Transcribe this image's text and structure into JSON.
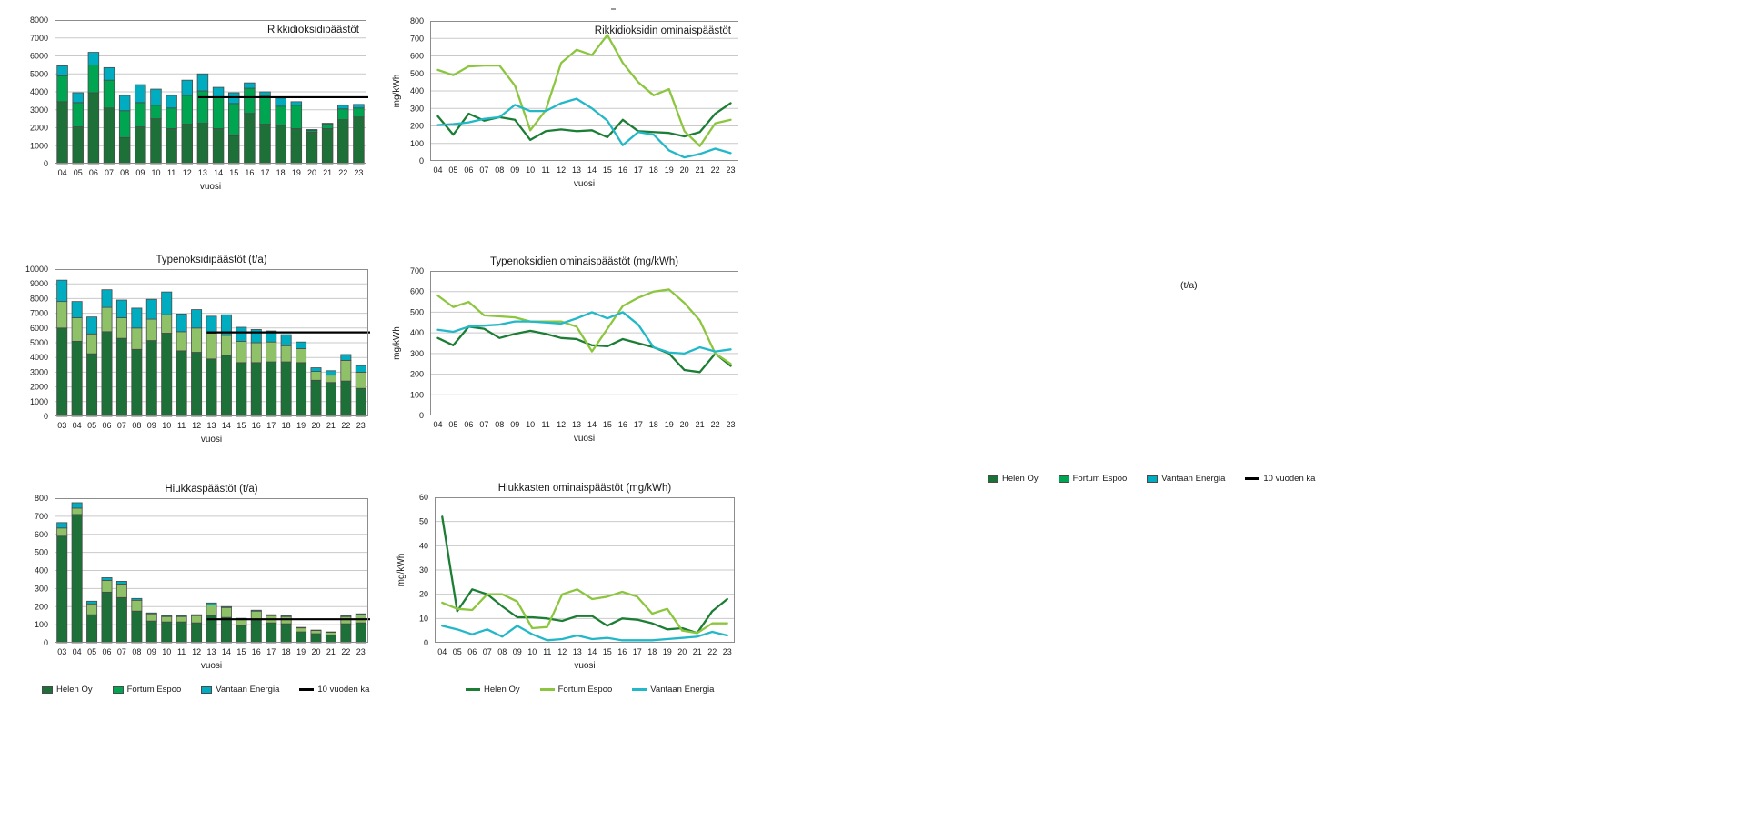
{
  "colors": {
    "helen_bar": "#1D7038",
    "fortum_bar_mid": "#00A551",
    "fortum_bar_light": "#8FC168",
    "vantaan_bar": "#00ADC0",
    "helen_line": "#1B7E34",
    "fortum_line": "#8CC63F",
    "vantaan_line": "#22B8C8",
    "avg_line": "#000000",
    "grid": "#C9C9C9",
    "plot_border": "#8C8C8C",
    "bar_border": "#4A4A4A"
  },
  "annotation_ta": "(t/a)",
  "charts": [
    {
      "id": "so2-emissions",
      "type": "stacked-bar",
      "title": "Rikkidioksidipäästöt",
      "title_align": "right",
      "xlabel": "vuosi",
      "ylabel": "",
      "ymax": 8000,
      "ystep": 1000,
      "categories": [
        "04",
        "05",
        "06",
        "07",
        "08",
        "09",
        "10",
        "11",
        "12",
        "13",
        "14",
        "15",
        "16",
        "17",
        "18",
        "19",
        "20",
        "21",
        "22",
        "23"
      ],
      "series": [
        {
          "name": "Helen Oy",
          "color": "helen_bar",
          "values": [
            3450,
            2050,
            3950,
            3100,
            1450,
            2050,
            2500,
            1950,
            2200,
            2250,
            1950,
            1550,
            2800,
            2200,
            2100,
            1950,
            1750,
            1950,
            2450,
            2600
          ]
        },
        {
          "name": "Fortum Espoo",
          "color": "fortum_bar_mid",
          "values": [
            1450,
            1350,
            1550,
            1550,
            1500,
            1350,
            750,
            1150,
            1600,
            1800,
            1750,
            1800,
            1400,
            1600,
            1100,
            1300,
            100,
            250,
            600,
            500
          ]
        },
        {
          "name": "Vantaan Energia",
          "color": "vantaan_bar",
          "values": [
            550,
            550,
            700,
            700,
            850,
            1000,
            900,
            700,
            850,
            950,
            550,
            600,
            300,
            200,
            450,
            200,
            50,
            50,
            200,
            200
          ]
        }
      ],
      "avg_line": {
        "label": "10 vuoden ka",
        "value": 3700,
        "start_category": "13"
      }
    },
    {
      "id": "so2-specific",
      "type": "line",
      "title": "Rikkidioksidin ominaispäästöt",
      "title_align": "right",
      "xlabel": "vuosi",
      "ylabel": "mg/kWh",
      "ymax": 800,
      "ystep": 100,
      "categories": [
        "04",
        "05",
        "06",
        "07",
        "08",
        "09",
        "10",
        "11",
        "12",
        "13",
        "14",
        "15",
        "16",
        "17",
        "18",
        "19",
        "20",
        "21",
        "22",
        "23"
      ],
      "series": [
        {
          "name": "Helen Oy",
          "color": "helen_line",
          "values": [
            255,
            150,
            270,
            230,
            250,
            235,
            120,
            170,
            180,
            170,
            175,
            135,
            235,
            170,
            165,
            160,
            140,
            165,
            270,
            330
          ]
        },
        {
          "name": "Fortum Espoo",
          "color": "fortum_line",
          "values": [
            520,
            490,
            540,
            545,
            545,
            430,
            175,
            290,
            560,
            635,
            605,
            720,
            560,
            450,
            375,
            410,
            170,
            85,
            215,
            235
          ]
        },
        {
          "name": "Vantaan Energia",
          "color": "vantaan_line",
          "values": [
            205,
            210,
            220,
            240,
            250,
            320,
            285,
            285,
            330,
            355,
            300,
            230,
            90,
            165,
            150,
            60,
            20,
            40,
            70,
            45
          ]
        }
      ]
    },
    {
      "id": "nox-emissions",
      "type": "stacked-bar",
      "title": "Typenoksidipäästöt (t/a)",
      "title_align": "center",
      "xlabel": "vuosi",
      "ylabel": "",
      "ymax": 10000,
      "ystep": 1000,
      "categories": [
        "03",
        "04",
        "05",
        "06",
        "07",
        "08",
        "09",
        "10",
        "11",
        "12",
        "13",
        "14",
        "15",
        "16",
        "17",
        "18",
        "19",
        "20",
        "21",
        "22",
        "23"
      ],
      "series": [
        {
          "name": "Helen Oy",
          "color": "helen_bar",
          "values": [
            6000,
            5100,
            4250,
            5750,
            5300,
            4550,
            5150,
            5650,
            4450,
            4350,
            3900,
            4150,
            3650,
            3650,
            3700,
            3700,
            3650,
            2450,
            2300,
            2400,
            1900
          ]
        },
        {
          "name": "Fortum Espoo",
          "color": "fortum_bar_light",
          "values": [
            1800,
            1600,
            1350,
            1650,
            1400,
            1450,
            1450,
            1250,
            1300,
            1650,
            1750,
            1350,
            1450,
            1350,
            1350,
            1100,
            950,
            600,
            500,
            1400,
            1100
          ]
        },
        {
          "name": "Vantaan Energia",
          "color": "vantaan_bar",
          "values": [
            1450,
            1100,
            1150,
            1200,
            1200,
            1350,
            1350,
            1550,
            1200,
            1250,
            1150,
            1400,
            950,
            900,
            750,
            750,
            450,
            250,
            300,
            400,
            450
          ]
        }
      ],
      "avg_line": {
        "label": "10 vuoden ka",
        "value": 5700,
        "start_category": "13"
      }
    },
    {
      "id": "nox-specific",
      "type": "line",
      "title": "Typenoksidien ominaispäästöt (mg/kWh)",
      "title_align": "center",
      "xlabel": "vuosi",
      "ylabel": "mg/kWh",
      "ymax": 700,
      "ystep": 100,
      "categories": [
        "04",
        "05",
        "06",
        "07",
        "08",
        "09",
        "10",
        "11",
        "12",
        "13",
        "14",
        "15",
        "16",
        "17",
        "18",
        "19",
        "20",
        "21",
        "22",
        "23"
      ],
      "series": [
        {
          "name": "Helen Oy",
          "color": "helen_line",
          "values": [
            375,
            340,
            430,
            420,
            375,
            395,
            410,
            395,
            375,
            370,
            340,
            335,
            370,
            350,
            330,
            300,
            220,
            210,
            300,
            240
          ]
        },
        {
          "name": "Fortum Espoo",
          "color": "fortum_line",
          "values": [
            580,
            525,
            550,
            485,
            480,
            475,
            455,
            455,
            455,
            430,
            310,
            420,
            530,
            570,
            600,
            610,
            545,
            460,
            300,
            250
          ]
        },
        {
          "name": "Vantaan Energia",
          "color": "vantaan_line",
          "values": [
            415,
            405,
            430,
            435,
            440,
            455,
            455,
            450,
            445,
            470,
            500,
            470,
            500,
            440,
            330,
            305,
            300,
            330,
            310,
            320
          ]
        }
      ]
    },
    {
      "id": "particle-emissions",
      "type": "stacked-bar",
      "title": "Hiukkaspäästöt (t/a)",
      "title_align": "center",
      "xlabel": "vuosi",
      "ylabel": "",
      "ymax": 800,
      "ystep": 100,
      "categories": [
        "03",
        "04",
        "05",
        "06",
        "07",
        "08",
        "09",
        "10",
        "11",
        "12",
        "13",
        "14",
        "15",
        "16",
        "17",
        "18",
        "19",
        "20",
        "21",
        "22",
        "23"
      ],
      "series": [
        {
          "name": "Helen Oy",
          "color": "helen_bar",
          "values": [
            590,
            710,
            155,
            280,
            250,
            175,
            120,
            115,
            115,
            110,
            150,
            140,
            95,
            125,
            110,
            105,
            60,
            50,
            42,
            105,
            110
          ]
        },
        {
          "name": "Fortum Espoo",
          "color": "fortum_bar_light",
          "values": [
            45,
            35,
            60,
            65,
            75,
            60,
            40,
            30,
            30,
            40,
            60,
            55,
            35,
            50,
            40,
            40,
            22,
            18,
            16,
            40,
            45
          ]
        },
        {
          "name": "Vantaan Energia",
          "color": "vantaan_bar",
          "values": [
            30,
            30,
            15,
            15,
            15,
            10,
            5,
            5,
            5,
            5,
            10,
            5,
            5,
            5,
            5,
            5,
            3,
            2,
            2,
            5,
            5
          ]
        }
      ],
      "avg_line": {
        "label": "10 vuoden ka",
        "value": 130,
        "start_category": "13"
      }
    },
    {
      "id": "particle-specific",
      "type": "line",
      "title": "Hiukkasten ominaispäästöt (mg/kWh)",
      "title_align": "center",
      "xlabel": "vuosi",
      "ylabel": "mg/kWh",
      "ymax": 60,
      "ystep": 10,
      "categories": [
        "04",
        "05",
        "06",
        "07",
        "08",
        "09",
        "10",
        "11",
        "12",
        "13",
        "14",
        "15",
        "16",
        "17",
        "18",
        "19",
        "20",
        "21",
        "22",
        "23"
      ],
      "series": [
        {
          "name": "Helen Oy",
          "color": "helen_line",
          "values": [
            52,
            13,
            22,
            20,
            15,
            10.5,
            10.5,
            10,
            9,
            11,
            11,
            7,
            10,
            9.5,
            8,
            5.5,
            6,
            4,
            13,
            18
          ]
        },
        {
          "name": "Fortum Espoo",
          "color": "fortum_line",
          "values": [
            16.5,
            14,
            13.5,
            20,
            20,
            17,
            6,
            6.5,
            20,
            22,
            18,
            19,
            21,
            19,
            12,
            14,
            5,
            4,
            8,
            8
          ]
        },
        {
          "name": "Vantaan Energia",
          "color": "vantaan_line",
          "values": [
            7,
            5.5,
            3.5,
            5.5,
            2.5,
            7,
            3.5,
            1,
            1.5,
            3,
            1.5,
            2,
            1,
            1,
            1,
            1.5,
            2,
            2.5,
            4.5,
            3
          ]
        }
      ]
    }
  ],
  "legends": [
    {
      "id": "legend-bottom-left",
      "items": [
        {
          "label": "Helen Oy",
          "color": "helen_bar",
          "marker": "rect"
        },
        {
          "label": "Fortum Espoo",
          "color": "fortum_bar_mid",
          "marker": "rect"
        },
        {
          "label": "Vantaan Energia",
          "color": "vantaan_bar",
          "marker": "rect"
        },
        {
          "label": "10 vuoden ka",
          "color": "avg_line",
          "marker": "line"
        }
      ]
    },
    {
      "id": "legend-bottom-center",
      "items": [
        {
          "label": "Helen Oy",
          "color": "helen_line",
          "marker": "line"
        },
        {
          "label": "Fortum Espoo",
          "color": "fortum_line",
          "marker": "line"
        },
        {
          "label": "Vantaan Energia",
          "color": "vantaan_line",
          "marker": "line"
        }
      ]
    },
    {
      "id": "legend-right",
      "items": [
        {
          "label": "Helen Oy",
          "color": "helen_bar",
          "marker": "rect"
        },
        {
          "label": "Fortum Espoo",
          "color": "fortum_bar_mid",
          "marker": "rect"
        },
        {
          "label": "Vantaan Energia",
          "color": "vantaan_bar",
          "marker": "rect"
        },
        {
          "label": "10 vuoden ka",
          "color": "avg_line",
          "marker": "line"
        }
      ]
    }
  ]
}
